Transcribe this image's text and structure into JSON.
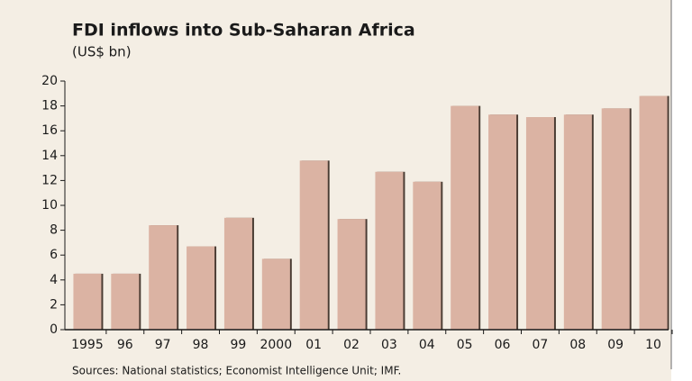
{
  "chart_data": {
    "type": "bar",
    "title": "FDI inflows into Sub-Saharan Africa",
    "subtitle": "(US$ bn)",
    "source": "Sources: National statistics; Economist Intelligence Unit; IMF.",
    "categories": [
      "1995",
      "96",
      "97",
      "98",
      "99",
      "2000",
      "01",
      "02",
      "03",
      "04",
      "05",
      "06",
      "07",
      "08",
      "09",
      "10"
    ],
    "values": [
      4.5,
      4.5,
      8.4,
      6.7,
      9.0,
      5.7,
      13.6,
      8.9,
      12.7,
      11.9,
      18.0,
      17.3,
      17.1,
      17.3,
      17.8,
      18.8
    ],
    "color": "#dbb3a3",
    "ylim": [
      0,
      20
    ],
    "yticks": [
      0,
      2,
      4,
      6,
      8,
      10,
      12,
      14,
      16,
      18,
      20
    ],
    "grid": false
  }
}
